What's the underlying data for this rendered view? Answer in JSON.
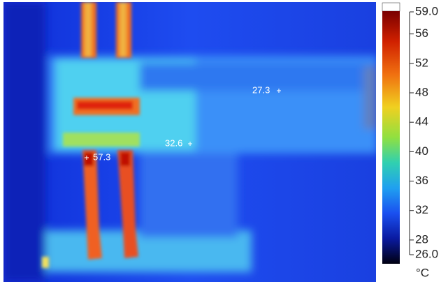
{
  "spots": [
    {
      "value": 57.3
    },
    {
      "value": 32.6
    },
    {
      "value": 27.3
    }
  ],
  "scale": {
    "unit": "°C",
    "ticks": [
      {
        "value": 59,
        "label": "59.0"
      },
      56,
      52,
      48,
      44,
      40,
      36,
      32,
      28,
      {
        "value": 26,
        "label": "26.0"
      }
    ]
  }
}
